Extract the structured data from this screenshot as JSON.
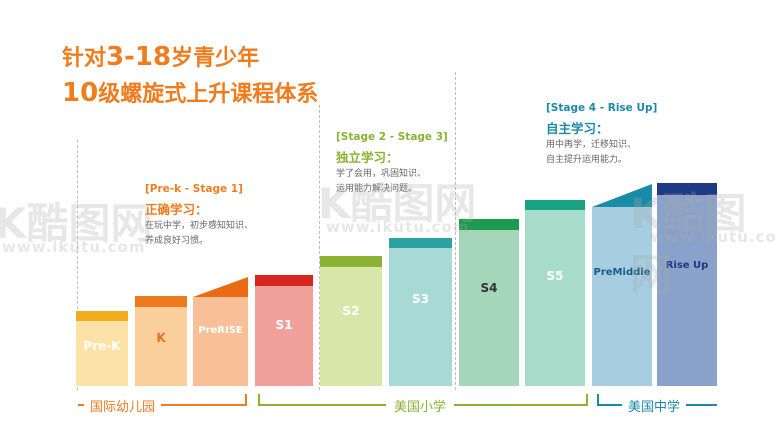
{
  "title": {
    "line1_prefix": "针对",
    "line1_range": "3-18",
    "line1_suffix": "岁青少年",
    "line2_num": "10",
    "line2_text": "级螺旋式上升课程体系"
  },
  "stages": [
    {
      "header": "[Pre-k - Stage 1]",
      "subtitle": "正确学习：",
      "desc1": "在玩中学，初步感知知识、",
      "desc2": "养成良好习惯。",
      "color": "#f07c1e"
    },
    {
      "header": "[Stage 2 - Stage 3]",
      "subtitle": "独立学习：",
      "desc1": "学了会用，巩固知识、",
      "desc2": "运用能力解决问题。",
      "color": "#8ab333"
    },
    {
      "header": "[Stage 4 - Rise Up]",
      "subtitle": "自主学习：",
      "desc1": "用中再学，迁移知识、",
      "desc2": "自主提升运用能力。",
      "color": "#1a8ba6"
    }
  ],
  "bars": [
    {
      "label": "Pre-K",
      "body": "#fce2a6",
      "cap": "#f2ad1f",
      "textColor": "#ffffff"
    },
    {
      "label": "K",
      "body": "#fbcf9c",
      "cap": "#ee7a1e",
      "textColor": "#e8701a"
    },
    {
      "label": "PreRISE",
      "body": "#f9bf97",
      "cap": "#ea6b12",
      "textColor": "#ffffff"
    },
    {
      "label": "S1",
      "body": "#f2a09c",
      "cap": "#d8261f",
      "textColor": "#ffffff"
    },
    {
      "label": "S2",
      "body": "#d9e6a9",
      "cap": "#8ab333",
      "textColor": "#ffffff"
    },
    {
      "label": "S3",
      "body": "#a7d9d7",
      "cap": "#2ca2a5",
      "textColor": "#ffffff"
    },
    {
      "label": "S4",
      "body": "#a5d6b9",
      "cap": "#1e9a4e",
      "textColor": "#333333"
    },
    {
      "label": "S5",
      "body": "#a7dccb",
      "cap": "#1aa383",
      "textColor": "#ffffff"
    },
    {
      "label": "PreMiddle",
      "body": "#a7cde0",
      "cap": "#1a8ba6",
      "textColor": "#1a5c8a"
    },
    {
      "label": "Rise Up",
      "body": "#8aa2c9",
      "cap": "#1e3a86",
      "textColor": "#1e3a86"
    }
  ],
  "groups": [
    {
      "label": "国际幼儿园",
      "color": "#f07c1e"
    },
    {
      "label": "美国小学",
      "color": "#8ab333"
    },
    {
      "label": "美国中学",
      "color": "#1a8ba6"
    }
  ],
  "watermark": {
    "brand": "K酷图网",
    "url": "www.ikutu.com"
  }
}
